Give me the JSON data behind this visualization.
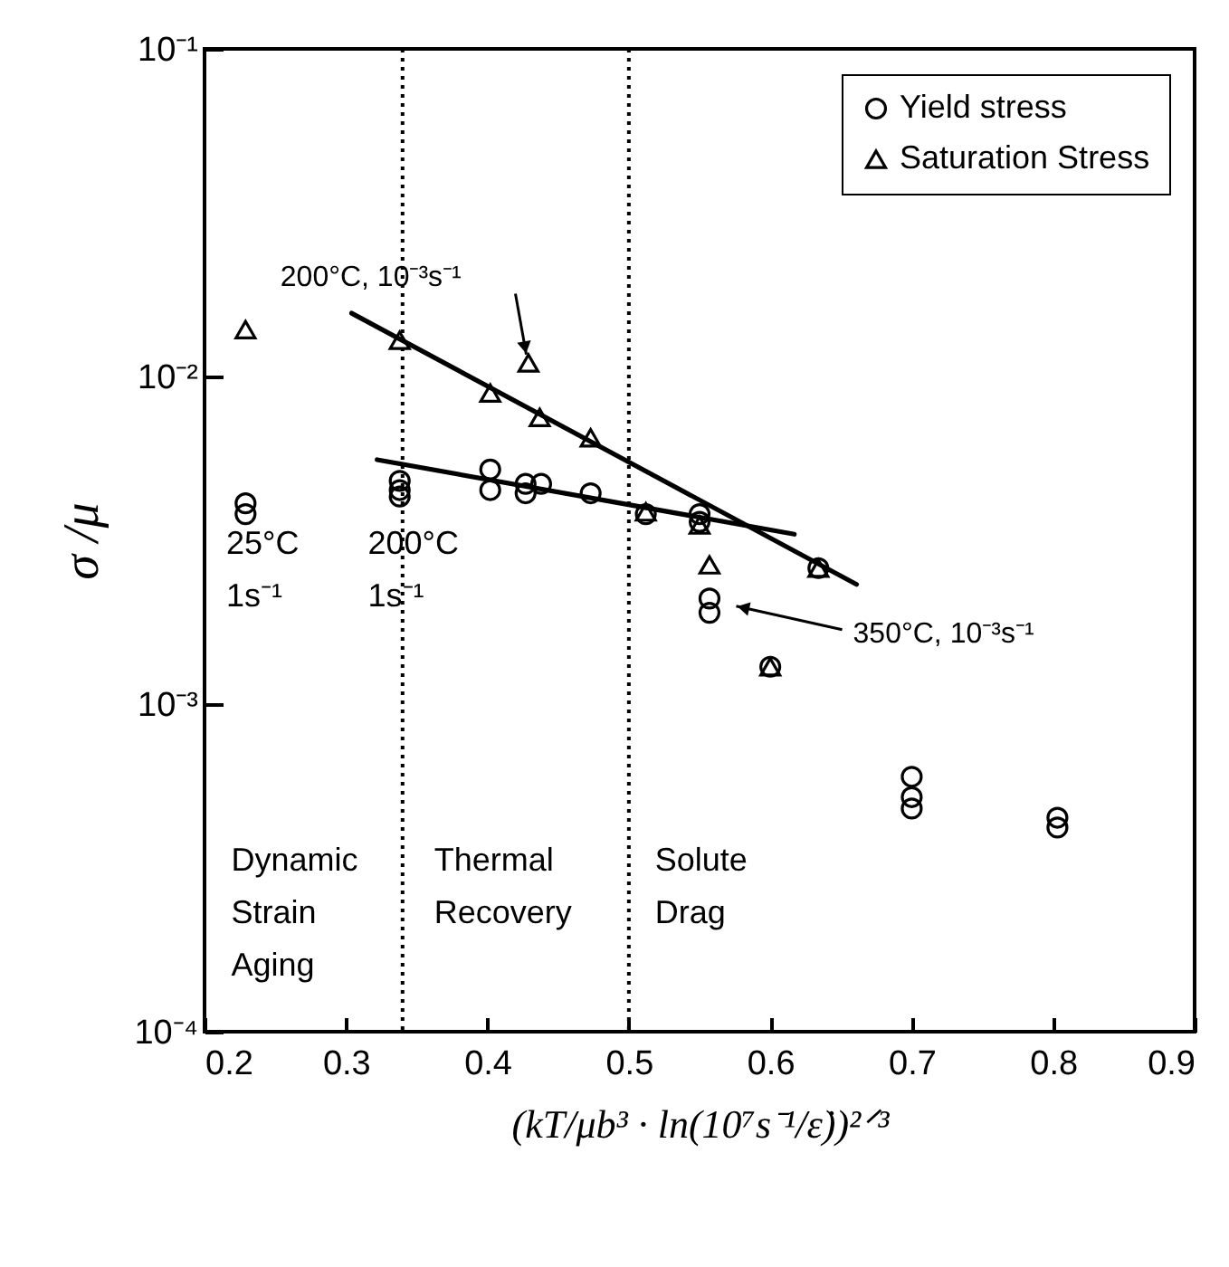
{
  "chart_data": {
    "type": "scatter",
    "xlabel": "(kT/μb³ · ln(10⁷s⁻¹/ε̇))²ᐟ³",
    "ylabel": "σ /μ",
    "log": "y",
    "legend": "top right",
    "xlim": [
      0.2,
      0.9
    ],
    "xticks": [
      0.2,
      0.3,
      0.4,
      0.5,
      0.6,
      0.7,
      0.8,
      0.9
    ],
    "ylim": [
      0.0001,
      0.1
    ],
    "yticks": [
      {
        "value": 0.0001,
        "label": "10⁻⁴"
      },
      {
        "value": 0.001,
        "label": "10⁻³"
      },
      {
        "value": 0.01,
        "label": "10⁻²"
      },
      {
        "value": 0.1,
        "label": "10⁻¹"
      }
    ],
    "series": [
      {
        "name": "Yield stress",
        "marker": "circle",
        "color": "#000000",
        "x": [
          0.229,
          0.229,
          0.338,
          0.338,
          0.338,
          0.402,
          0.402,
          0.427,
          0.427,
          0.438,
          0.473,
          0.512,
          0.55,
          0.55,
          0.557,
          0.557,
          0.6,
          0.634,
          0.7,
          0.7,
          0.7,
          0.803,
          0.803
        ],
        "values": [
          0.0041,
          0.0038,
          0.0048,
          0.0045,
          0.0043,
          0.0052,
          0.0045,
          0.0047,
          0.0044,
          0.0047,
          0.0044,
          0.0038,
          0.0038,
          0.0036,
          0.0021,
          0.0019,
          0.0013,
          0.0026,
          0.0006,
          0.00052,
          0.00048,
          0.00045,
          0.00042
        ]
      },
      {
        "name": "Saturation Stress",
        "marker": "triangle",
        "color": "#000000",
        "x": [
          0.229,
          0.338,
          0.402,
          0.429,
          0.437,
          0.473,
          0.512,
          0.55,
          0.557,
          0.6,
          0.634
        ],
        "values": [
          0.0139,
          0.0129,
          0.0089,
          0.011,
          0.0075,
          0.0065,
          0.00386,
          0.00352,
          0.00266,
          0.0013,
          0.0026
        ]
      },
      {
        "type": "line",
        "color": "#000000",
        "x": [
          0.304,
          0.661
        ],
        "values": [
          0.0156,
          0.00232
        ]
      },
      {
        "type": "line",
        "color": "#000000",
        "x": [
          0.322,
          0.617
        ],
        "values": [
          0.00557,
          0.0033
        ]
      }
    ],
    "ref_lines": [
      {
        "axis": "x",
        "value": 0.34,
        "line_style": "dotted"
      },
      {
        "axis": "x",
        "value": 0.5,
        "line_style": "dotted"
      }
    ],
    "annotations": [
      "200°C, 10⁻³s⁻¹",
      "350°C, 10⁻³s⁻¹",
      "25°C 1s⁻¹",
      "200°C 1s⁻¹",
      "Dynamic Strain Aging",
      "Thermal Recovery",
      "Solute Drag"
    ]
  }
}
